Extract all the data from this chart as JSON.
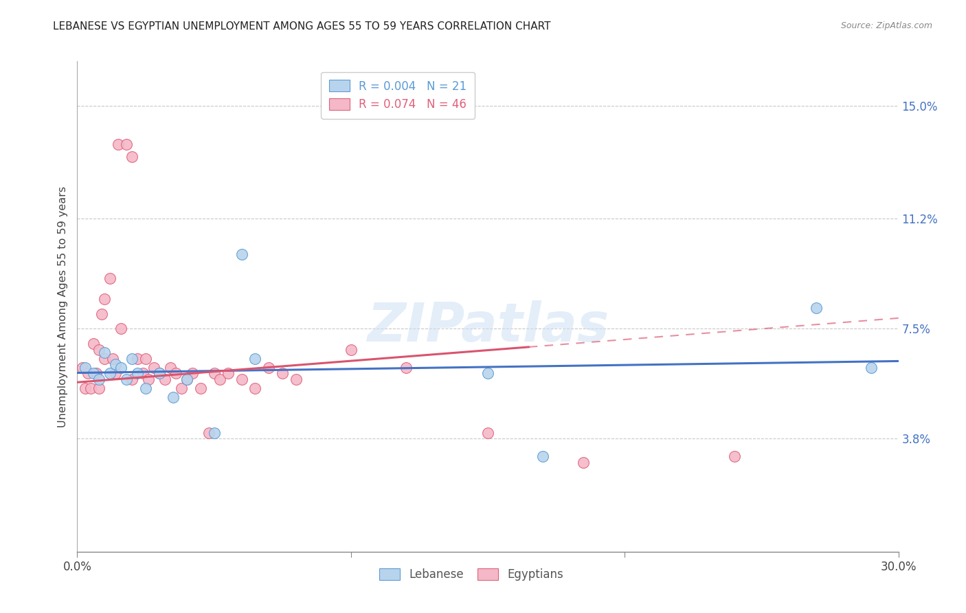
{
  "title": "LEBANESE VS EGYPTIAN UNEMPLOYMENT AMONG AGES 55 TO 59 YEARS CORRELATION CHART",
  "source": "Source: ZipAtlas.com",
  "ylabel": "Unemployment Among Ages 55 to 59 years",
  "xlim": [
    0.0,
    0.3
  ],
  "ylim": [
    0.0,
    0.165
  ],
  "ytick_labels_right": [
    "15.0%",
    "11.2%",
    "7.5%",
    "3.8%"
  ],
  "ytick_values_right": [
    0.15,
    0.112,
    0.075,
    0.038
  ],
  "watermark": "ZIPatlas",
  "lebanese_color": "#b8d4ed",
  "lebanese_edge_color": "#5b9bd5",
  "egyptian_color": "#f4b8c8",
  "egyptian_edge_color": "#e0607a",
  "trendline_lebanese_color": "#4472c4",
  "trendline_egyptian_color": "#d9546e",
  "background_color": "#ffffff",
  "grid_color": "#c8c8c8",
  "lebanese_scatter": [
    [
      0.003,
      0.062
    ],
    [
      0.006,
      0.06
    ],
    [
      0.008,
      0.058
    ],
    [
      0.01,
      0.067
    ],
    [
      0.012,
      0.06
    ],
    [
      0.014,
      0.063
    ],
    [
      0.016,
      0.062
    ],
    [
      0.018,
      0.058
    ],
    [
      0.02,
      0.065
    ],
    [
      0.022,
      0.06
    ],
    [
      0.025,
      0.055
    ],
    [
      0.03,
      0.06
    ],
    [
      0.035,
      0.052
    ],
    [
      0.04,
      0.058
    ],
    [
      0.05,
      0.04
    ],
    [
      0.06,
      0.1
    ],
    [
      0.065,
      0.065
    ],
    [
      0.15,
      0.06
    ],
    [
      0.17,
      0.032
    ],
    [
      0.27,
      0.082
    ],
    [
      0.29,
      0.062
    ]
  ],
  "egyptian_scatter": [
    [
      0.002,
      0.062
    ],
    [
      0.003,
      0.055
    ],
    [
      0.004,
      0.06
    ],
    [
      0.005,
      0.055
    ],
    [
      0.006,
      0.07
    ],
    [
      0.007,
      0.06
    ],
    [
      0.008,
      0.068
    ],
    [
      0.008,
      0.055
    ],
    [
      0.009,
      0.08
    ],
    [
      0.01,
      0.085
    ],
    [
      0.01,
      0.065
    ],
    [
      0.012,
      0.092
    ],
    [
      0.013,
      0.065
    ],
    [
      0.014,
      0.06
    ],
    [
      0.015,
      0.137
    ],
    [
      0.018,
      0.137
    ],
    [
      0.02,
      0.133
    ],
    [
      0.016,
      0.075
    ],
    [
      0.02,
      0.058
    ],
    [
      0.022,
      0.065
    ],
    [
      0.024,
      0.06
    ],
    [
      0.025,
      0.065
    ],
    [
      0.026,
      0.058
    ],
    [
      0.028,
      0.062
    ],
    [
      0.03,
      0.06
    ],
    [
      0.032,
      0.058
    ],
    [
      0.034,
      0.062
    ],
    [
      0.036,
      0.06
    ],
    [
      0.038,
      0.055
    ],
    [
      0.04,
      0.058
    ],
    [
      0.042,
      0.06
    ],
    [
      0.045,
      0.055
    ],
    [
      0.048,
      0.04
    ],
    [
      0.05,
      0.06
    ],
    [
      0.052,
      0.058
    ],
    [
      0.055,
      0.06
    ],
    [
      0.06,
      0.058
    ],
    [
      0.065,
      0.055
    ],
    [
      0.07,
      0.062
    ],
    [
      0.075,
      0.06
    ],
    [
      0.08,
      0.058
    ],
    [
      0.1,
      0.068
    ],
    [
      0.12,
      0.062
    ],
    [
      0.15,
      0.04
    ],
    [
      0.185,
      0.03
    ],
    [
      0.24,
      0.032
    ]
  ]
}
